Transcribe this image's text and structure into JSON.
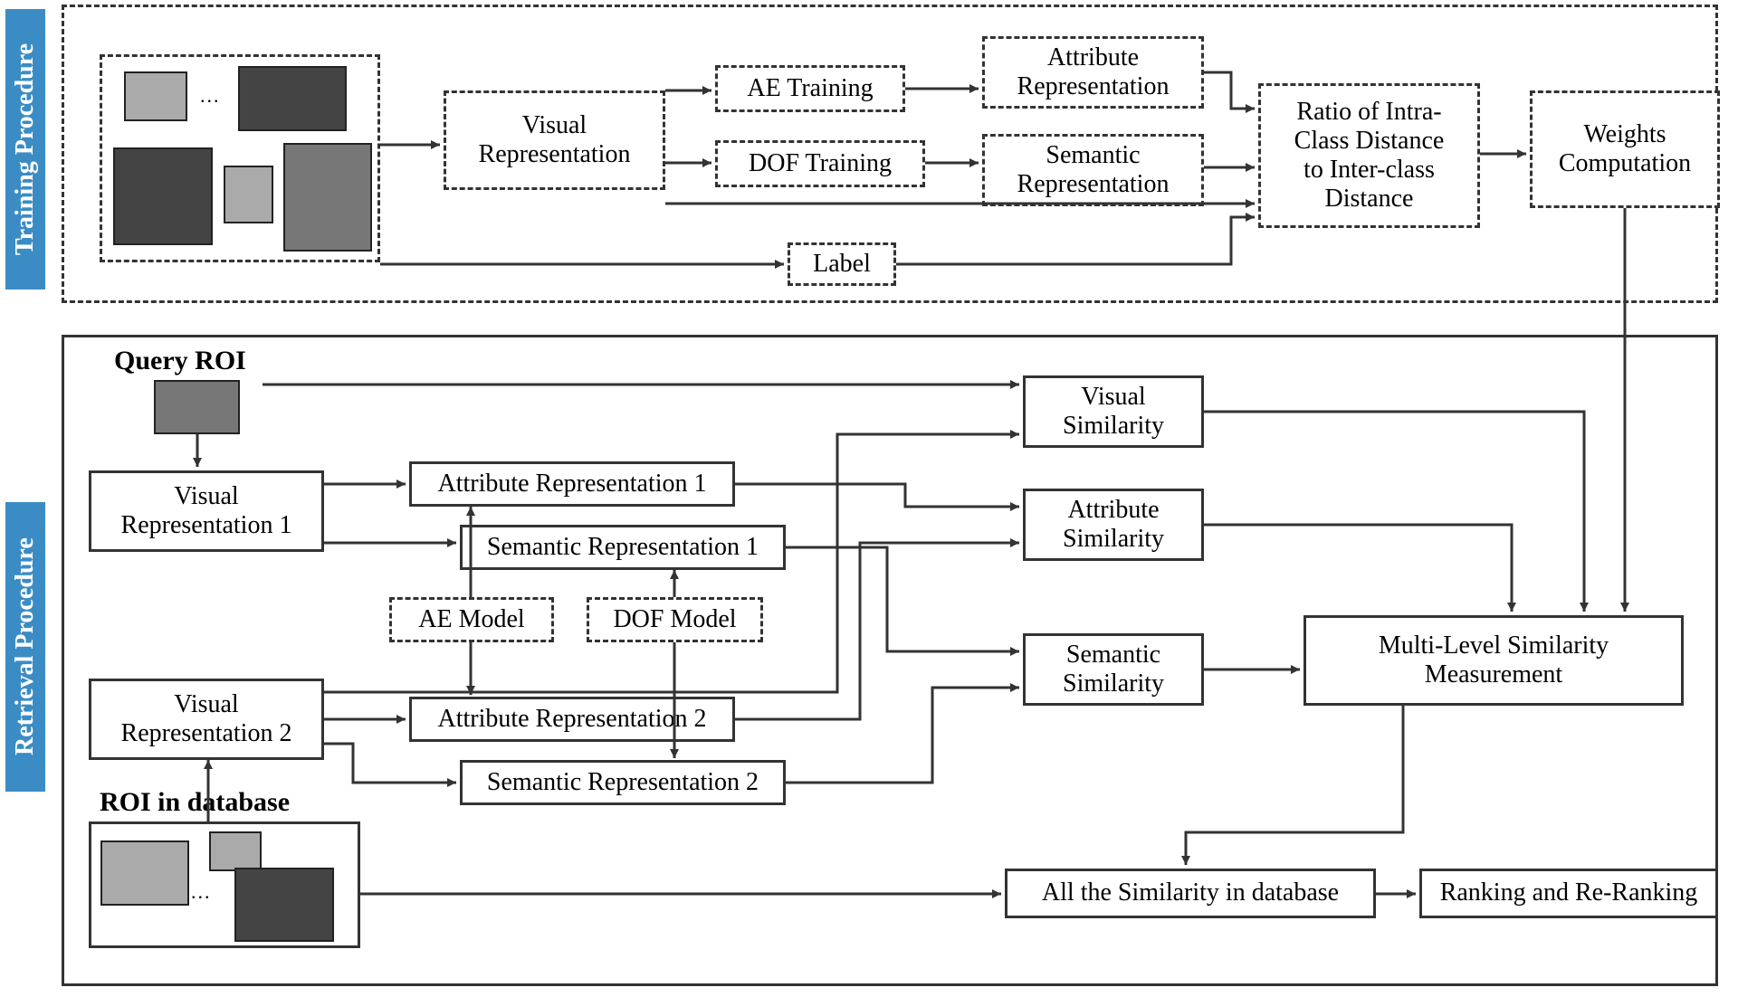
{
  "type": "flowchart",
  "background_color": "#ffffff",
  "stroke_color": "#333333",
  "font_family": "Times New Roman",
  "node_fontsize": 28,
  "label_fontsize": 30,
  "dashed_pattern": "8 6",
  "sections": {
    "training": {
      "label": "Training Procedure",
      "label_bg": "#3b8cc4",
      "label_color": "#ffffff",
      "border_style": "dashed"
    },
    "retrieval": {
      "label": "Retrieval Procedure",
      "label_bg": "#3b8cc4",
      "label_color": "#ffffff",
      "border_style": "solid"
    }
  },
  "labels": {
    "query_roi": "Query ROI",
    "roi_db": "ROI in database",
    "ellipsis": "..."
  },
  "nodes": {
    "vis_rep": {
      "text": "Visual\nRepresentation",
      "style": "dashed"
    },
    "ae_train": {
      "text": "AE Training",
      "style": "dashed"
    },
    "dof_train": {
      "text": "DOF Training",
      "style": "dashed"
    },
    "attr_rep": {
      "text": "Attribute\nRepresentation",
      "style": "dashed"
    },
    "sem_rep": {
      "text": "Semantic\nRepresentation",
      "style": "dashed"
    },
    "label_node": {
      "text": "Label",
      "style": "dashed"
    },
    "ratio": {
      "text": "Ratio of Intra-\nClass Distance\nto Inter-class\nDistance",
      "style": "dashed"
    },
    "weights": {
      "text": "Weights\nComputation",
      "style": "dashed"
    },
    "vis_rep1": {
      "text": "Visual\nRepresentation 1",
      "style": "solid"
    },
    "attr_rep1": {
      "text": "Attribute Representation 1",
      "style": "solid"
    },
    "sem_rep1": {
      "text": "Semantic Representation 1",
      "style": "solid"
    },
    "ae_model": {
      "text": "AE Model",
      "style": "dashed"
    },
    "dof_model": {
      "text": "DOF Model",
      "style": "dashed"
    },
    "vis_rep2": {
      "text": "Visual\nRepresentation 2",
      "style": "solid"
    },
    "attr_rep2": {
      "text": "Attribute Representation 2",
      "style": "solid"
    },
    "sem_rep2": {
      "text": "Semantic Representation 2",
      "style": "solid"
    },
    "vis_sim": {
      "text": "Visual\nSimilarity",
      "style": "solid"
    },
    "attr_sim": {
      "text": "Attribute\nSimilarity",
      "style": "solid"
    },
    "sem_sim": {
      "text": "Semantic\nSimilarity",
      "style": "solid"
    },
    "mlsm": {
      "text": "Multi-Level Similarity\nMeasurement",
      "style": "solid"
    },
    "all_sim": {
      "text": "All the Similarity in database",
      "style": "solid"
    },
    "ranking": {
      "text": "Ranking and Re-Ranking",
      "style": "solid"
    }
  },
  "edges": [
    [
      "train_imgs",
      "vis_rep"
    ],
    [
      "vis_rep",
      "ae_train"
    ],
    [
      "vis_rep",
      "dof_train"
    ],
    [
      "vis_rep",
      "ratio"
    ],
    [
      "ae_train",
      "attr_rep"
    ],
    [
      "dof_train",
      "sem_rep"
    ],
    [
      "attr_rep",
      "ratio"
    ],
    [
      "sem_rep",
      "ratio"
    ],
    [
      "train_imgs",
      "label_node"
    ],
    [
      "label_node",
      "ratio"
    ],
    [
      "ratio",
      "weights"
    ],
    [
      "query_img",
      "vis_rep1"
    ],
    [
      "vis_rep1",
      "attr_rep1"
    ],
    [
      "vis_rep1",
      "sem_rep1"
    ],
    [
      "vis_rep1",
      "vis_sim"
    ],
    [
      "ae_model",
      "attr_rep1"
    ],
    [
      "ae_model",
      "attr_rep2"
    ],
    [
      "dof_model",
      "sem_rep1"
    ],
    [
      "dof_model",
      "sem_rep2"
    ],
    [
      "db_imgs",
      "vis_rep2"
    ],
    [
      "vis_rep2",
      "attr_rep2"
    ],
    [
      "vis_rep2",
      "sem_rep2"
    ],
    [
      "vis_rep2",
      "vis_sim"
    ],
    [
      "attr_rep1",
      "attr_sim"
    ],
    [
      "attr_rep2",
      "attr_sim"
    ],
    [
      "sem_rep1",
      "sem_sim"
    ],
    [
      "sem_rep2",
      "sem_sim"
    ],
    [
      "vis_sim",
      "mlsm"
    ],
    [
      "attr_sim",
      "mlsm"
    ],
    [
      "sem_sim",
      "mlsm"
    ],
    [
      "weights",
      "mlsm"
    ],
    [
      "mlsm",
      "all_sim"
    ],
    [
      "db_imgs",
      "all_sim"
    ],
    [
      "all_sim",
      "ranking"
    ]
  ]
}
